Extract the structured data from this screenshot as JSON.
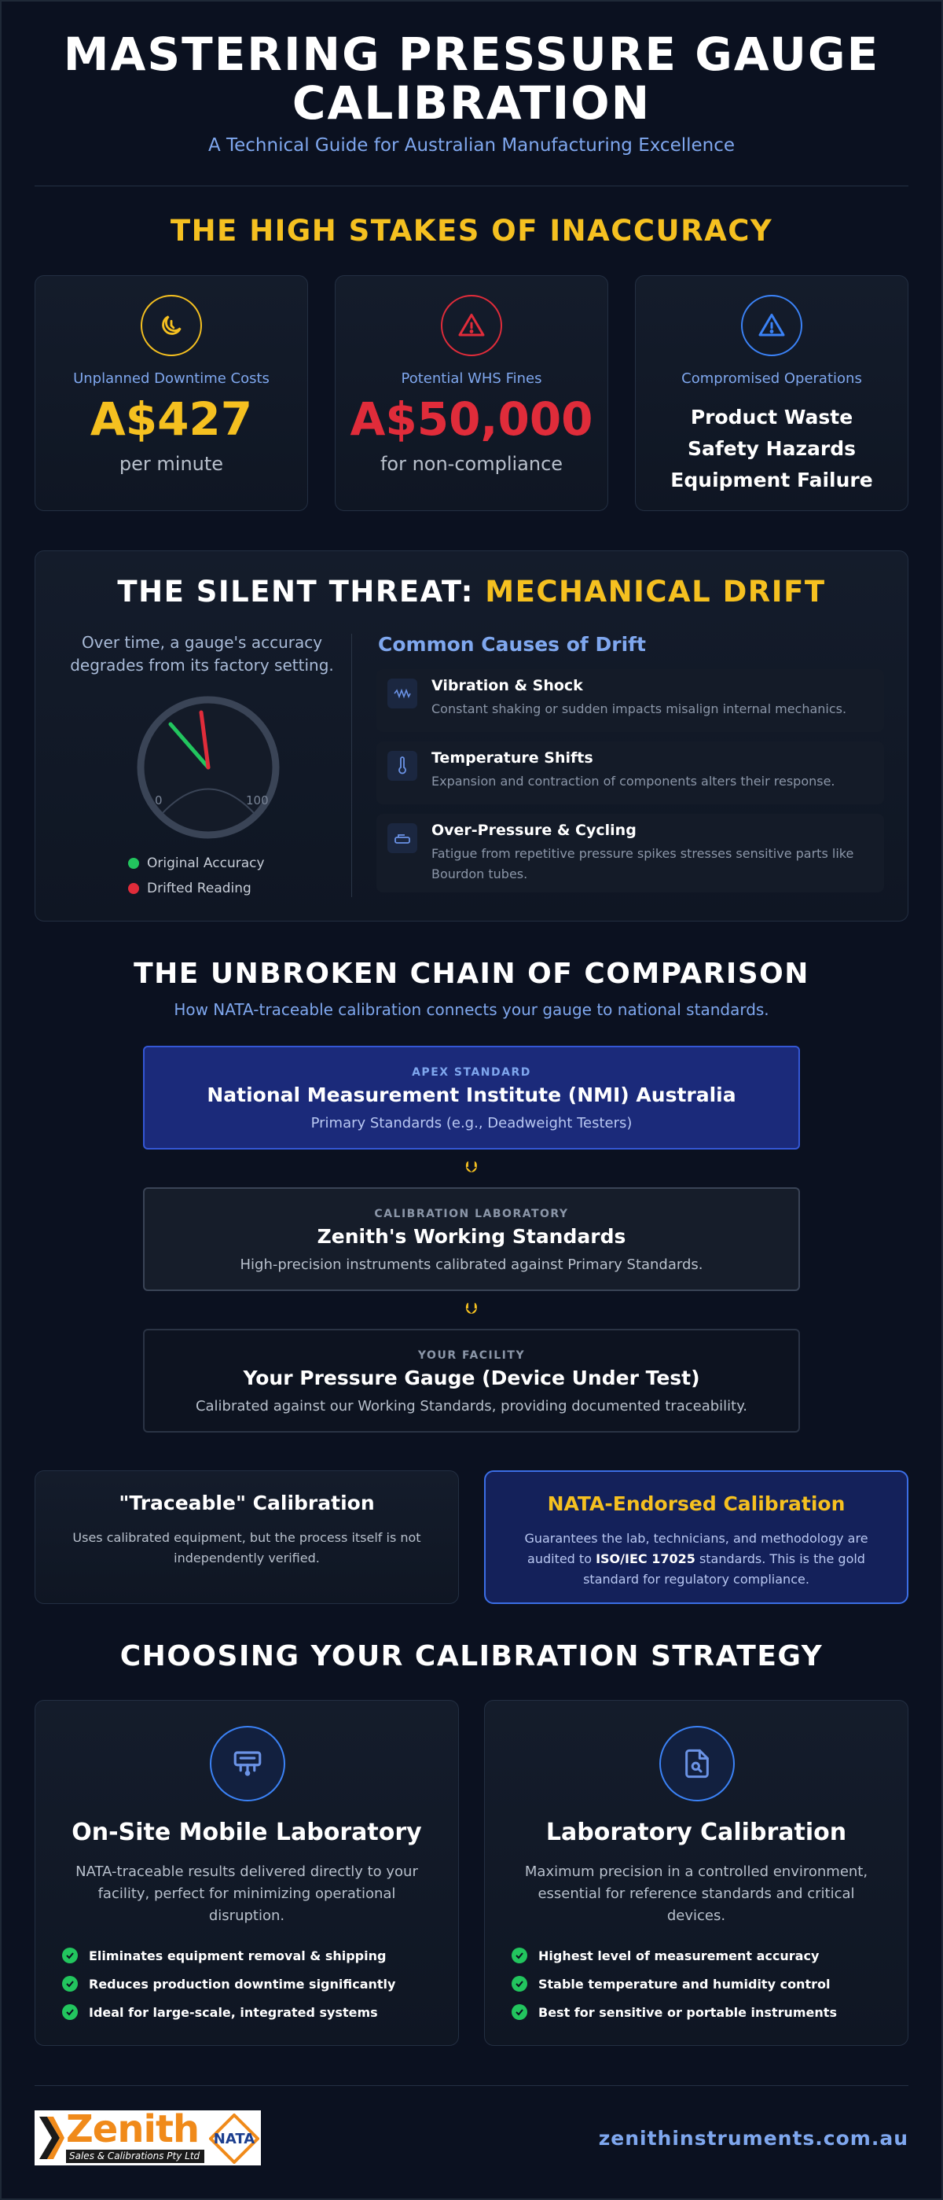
{
  "header": {
    "title_line1": "MASTERING PRESSURE GAUGE",
    "title_line2": "CALIBRATION",
    "subtitle": "A Technical Guide for Australian Manufacturing Excellence"
  },
  "stakes": {
    "title": "THE HIGH STAKES OF INACCURACY",
    "cards": [
      {
        "icon": "moon-icon",
        "label": "Unplanned Downtime Costs",
        "value": "A$427",
        "sub": "per minute",
        "color": "#f5c020"
      },
      {
        "icon": "warning-triangle-icon",
        "label": "Potential WHS Fines",
        "value": "A$50,000",
        "sub": "for non-compliance",
        "color": "#e02c3a"
      },
      {
        "icon": "warning-triangle-icon",
        "label": "Compromised Operations",
        "items": [
          "Product Waste",
          "Safety Hazards",
          "Equipment Failure"
        ],
        "color": "#3b82f6"
      }
    ]
  },
  "drift": {
    "title_prefix": "THE SILENT THREAT:",
    "title_highlight": "MECHANICAL DRIFT",
    "intro_line1": "Over time, a gauge's accuracy",
    "intro_line2": "degrades from its factory setting.",
    "gauge": {
      "min_label": "0",
      "max_label": "100"
    },
    "legend": [
      {
        "label": "Original Accuracy",
        "color": "#22c55e"
      },
      {
        "label": "Drifted Reading",
        "color": "#e02c3a"
      }
    ],
    "causes_title": "Common Causes of Drift",
    "causes": [
      {
        "icon": "vibration-icon",
        "title": "Vibration & Shock",
        "desc": "Constant shaking or sudden impacts misalign internal mechanics."
      },
      {
        "icon": "thermometer-icon",
        "title": "Temperature Shifts",
        "desc": "Expansion and contraction of components alters their response."
      },
      {
        "icon": "pressure-cycle-icon",
        "title": "Over-Pressure & Cycling",
        "desc": "Fatigue from repetitive pressure spikes stresses sensitive parts like Bourdon tubes."
      }
    ]
  },
  "chain": {
    "title": "THE UNBROKEN CHAIN OF COMPARISON",
    "subtitle": "How NATA-traceable calibration connects your gauge to national standards.",
    "arrow": "⮋",
    "levels": [
      {
        "eyebrow": "APEX STANDARD",
        "title": "National Measurement Institute (NMI) Australia",
        "desc": "Primary Standards (e.g., Deadweight Testers)"
      },
      {
        "eyebrow": "CALIBRATION LABORATORY",
        "title": "Zenith's Working Standards",
        "desc": "High-precision instruments calibrated against Primary Standards."
      },
      {
        "eyebrow": "YOUR FACILITY",
        "title": "Your Pressure Gauge (Device Under Test)",
        "desc": "Calibrated against our Working Standards, providing documented traceability."
      }
    ]
  },
  "compare": {
    "traceable": {
      "title": "\"Traceable\" Calibration",
      "desc": "Uses calibrated equipment, but the process itself is not independently verified."
    },
    "nata": {
      "title": "NATA-Endorsed Calibration",
      "desc_pre": "Guarantees the lab, technicians, and methodology are audited to ",
      "desc_bold": "ISO/IEC 17025",
      "desc_post": " standards. This is the gold standard for regulatory compliance."
    }
  },
  "strategy": {
    "title": "CHOOSING YOUR CALIBRATION STRATEGY",
    "options": [
      {
        "icon": "mobile-lab-icon",
        "title": "On-Site Mobile Laboratory",
        "desc": "NATA-traceable results delivered directly to your facility, perfect for minimizing operational disruption.",
        "bullets": [
          "Eliminates equipment removal & shipping",
          "Reduces production downtime significantly",
          "Ideal for large-scale, integrated systems"
        ]
      },
      {
        "icon": "document-search-icon",
        "title": "Laboratory Calibration",
        "desc": "Maximum precision in a controlled environment, essential for reference standards and critical devices.",
        "bullets": [
          "Highest level of measurement accuracy",
          "Stable temperature and humidity control",
          "Best for sensitive or portable instruments"
        ]
      }
    ]
  },
  "footer": {
    "logo_name": "Zenith",
    "logo_tagline": "Sales & Calibrations Pty Ltd",
    "logo_badge": "NATA",
    "url": "zenithinstruments.com.au"
  }
}
